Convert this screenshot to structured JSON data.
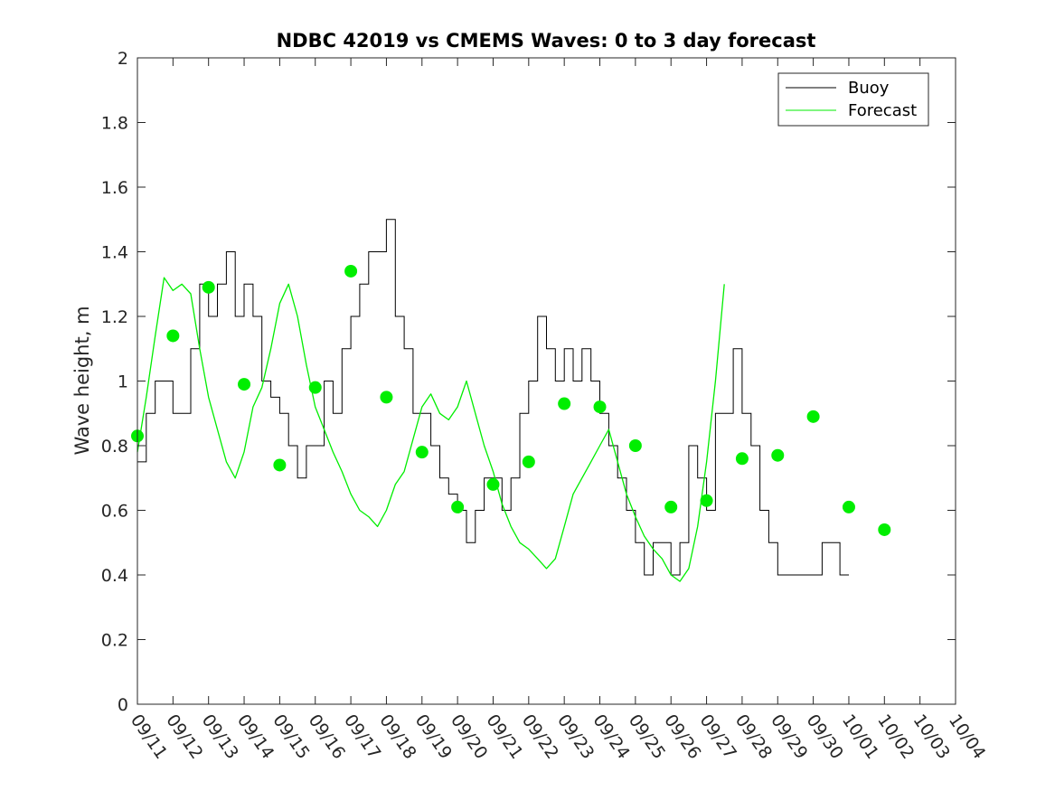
{
  "chart_data": {
    "type": "line",
    "title": "NDBC 42019 vs CMEMS Waves: 0 to 3 day forecast",
    "xlabel": "",
    "ylabel": "Wave height, m",
    "ylim": [
      0,
      2
    ],
    "yticks": [
      0,
      0.2,
      0.4,
      0.6,
      0.8,
      1,
      1.2,
      1.4,
      1.6,
      1.8,
      2
    ],
    "ytick_labels": [
      "0",
      "0.2",
      "0.4",
      "0.6",
      "0.8",
      "1",
      "1.2",
      "1.4",
      "1.6",
      "1.8",
      "2"
    ],
    "xlim_day": [
      0,
      23
    ],
    "xtick_labels": [
      "09/11",
      "09/12",
      "09/13",
      "09/14",
      "09/15",
      "09/16",
      "09/17",
      "09/18",
      "09/19",
      "09/20",
      "09/21",
      "09/22",
      "09/23",
      "09/24",
      "09/25",
      "09/26",
      "09/27",
      "09/28",
      "09/29",
      "09/30",
      "10/01",
      "10/02",
      "10/03",
      "10/04"
    ],
    "grid": false,
    "legend_position": "top-right",
    "colors": {
      "buoy": "#000000",
      "forecast": "#00ee00",
      "axis": "#262626"
    },
    "series": [
      {
        "name": "Buoy",
        "x_start": "09/11",
        "step_hours": 6,
        "values": [
          0.75,
          0.9,
          1.0,
          1.0,
          0.9,
          0.9,
          1.1,
          1.3,
          1.2,
          1.3,
          1.4,
          1.2,
          1.3,
          1.2,
          1.0,
          0.95,
          0.9,
          0.8,
          0.7,
          0.8,
          0.8,
          1.0,
          0.9,
          1.1,
          1.2,
          1.3,
          1.4,
          1.4,
          1.5,
          1.2,
          1.1,
          0.9,
          0.9,
          0.8,
          0.7,
          0.65,
          0.6,
          0.5,
          0.6,
          0.7,
          0.7,
          0.6,
          0.7,
          0.9,
          1.0,
          1.2,
          1.1,
          1.0,
          1.1,
          1.0,
          1.1,
          1.0,
          0.9,
          0.8,
          0.7,
          0.6,
          0.5,
          0.4,
          0.5,
          0.5,
          0.4,
          0.5,
          0.8,
          0.7,
          0.6,
          0.9,
          0.9,
          1.1,
          0.9,
          0.8,
          0.6,
          0.5,
          0.4,
          0.4,
          0.4,
          0.4,
          0.4,
          0.5,
          0.5,
          0.4
        ]
      },
      {
        "name": "Forecast",
        "x_start": "09/11",
        "step_hours": 6,
        "values": [
          0.78,
          0.95,
          1.14,
          1.32,
          1.28,
          1.3,
          1.27,
          1.1,
          0.95,
          0.85,
          0.75,
          0.7,
          0.78,
          0.92,
          0.98,
          1.1,
          1.24,
          1.3,
          1.2,
          1.05,
          0.92,
          0.85,
          0.78,
          0.72,
          0.65,
          0.6,
          0.58,
          0.55,
          0.6,
          0.68,
          0.72,
          0.82,
          0.92,
          0.96,
          0.9,
          0.88,
          0.92,
          1.0,
          0.9,
          0.8,
          0.72,
          0.62,
          0.55,
          0.5,
          0.48,
          0.45,
          0.42,
          0.45,
          0.55,
          0.65,
          0.7,
          0.75,
          0.8,
          0.85,
          0.75,
          0.65,
          0.58,
          0.52,
          0.48,
          0.45,
          0.4,
          0.38,
          0.42,
          0.55,
          0.75,
          1.0,
          1.3
        ]
      }
    ],
    "analysis_points": {
      "name": "Forecast initial values",
      "x_day": [
        0,
        1,
        2,
        3,
        4,
        5,
        6,
        7,
        8,
        9,
        10,
        11,
        12,
        13,
        14,
        15,
        16,
        17,
        18,
        19,
        20,
        21
      ],
      "values": [
        0.83,
        1.14,
        1.29,
        0.99,
        0.74,
        0.98,
        1.34,
        0.95,
        0.78,
        0.61,
        0.68,
        0.75,
        0.93,
        0.92,
        0.8,
        0.61,
        0.63,
        0.76,
        0.77,
        0.89,
        0.61,
        0.54
      ]
    }
  }
}
